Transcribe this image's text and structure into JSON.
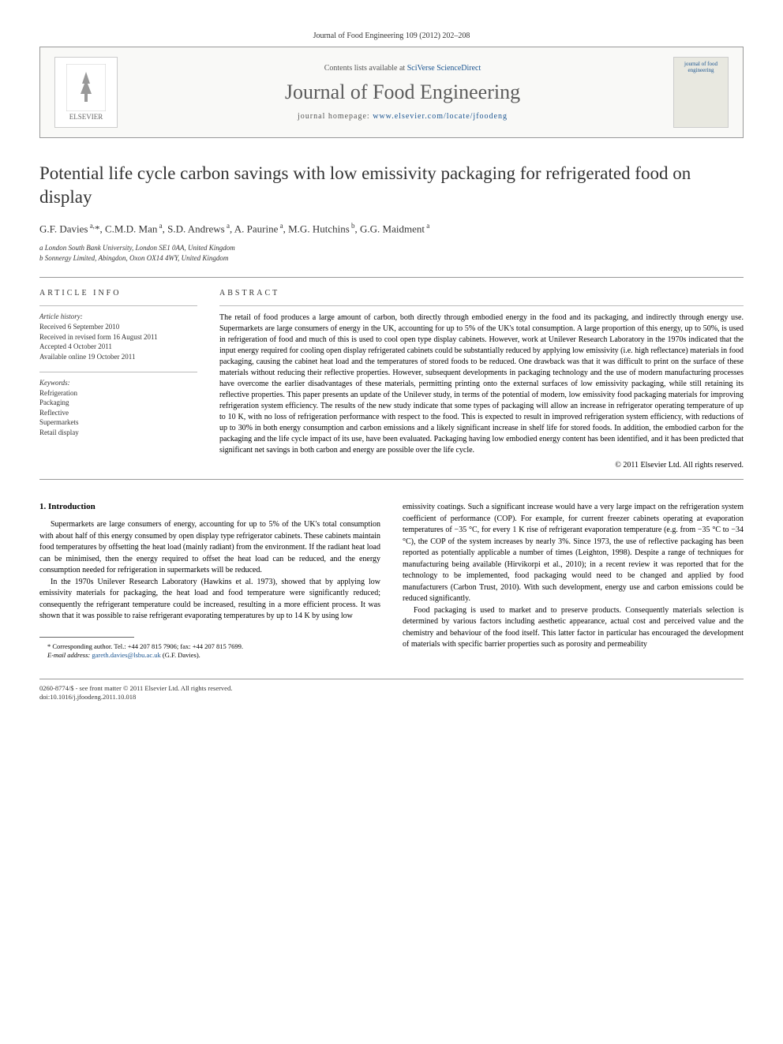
{
  "page_header": "Journal of Food Engineering 109 (2012) 202–208",
  "banner": {
    "contents_line_pre": "Contents lists available at ",
    "contents_line_link": "SciVerse ScienceDirect",
    "journal_name": "Journal of Food Engineering",
    "homepage_pre": "journal homepage: ",
    "homepage_url": "www.elsevier.com/locate/jfoodeng",
    "publisher": "ELSEVIER",
    "cover_text": "journal of food engineering"
  },
  "title": "Potential life cycle carbon savings with low emissivity packaging for refrigerated food on display",
  "authors_html": "G.F. Davies<sup> a,</sup>*, C.M.D. Man<sup> a</sup>, S.D. Andrews<sup> a</sup>, A. Paurine<sup> a</sup>, M.G. Hutchins<sup> b</sup>, G.G. Maidment<sup> a</sup>",
  "affiliations": {
    "a": "a London South Bank University, London SE1 0AA, United Kingdom",
    "b": "b Sonnergy Limited, Abingdon, Oxon OX14 4WY, United Kingdom"
  },
  "article_info": {
    "heading": "ARTICLE INFO",
    "history_label": "Article history:",
    "history": [
      "Received 6 September 2010",
      "Received in revised form 16 August 2011",
      "Accepted 4 October 2011",
      "Available online 19 October 2011"
    ],
    "keywords_label": "Keywords:",
    "keywords": [
      "Refrigeration",
      "Packaging",
      "Reflective",
      "Supermarkets",
      "Retail display"
    ]
  },
  "abstract": {
    "heading": "ABSTRACT",
    "text": "The retail of food produces a large amount of carbon, both directly through embodied energy in the food and its packaging, and indirectly through energy use. Supermarkets are large consumers of energy in the UK, accounting for up to 5% of the UK's total consumption. A large proportion of this energy, up to 50%, is used in refrigeration of food and much of this is used to cool open type display cabinets. However, work at Unilever Research Laboratory in the 1970s indicated that the input energy required for cooling open display refrigerated cabinets could be substantially reduced by applying low emissivity (i.e. high reflectance) materials in food packaging, causing the cabinet heat load and the temperatures of stored foods to be reduced. One drawback was that it was difficult to print on the surface of these materials without reducing their reflective properties. However, subsequent developments in packaging technology and the use of modern manufacturing processes have overcome the earlier disadvantages of these materials, permitting printing onto the external surfaces of low emissivity packaging, while still retaining its reflective properties. This paper presents an update of the Unilever study, in terms of the potential of modern, low emissivity food packaging materials for improving refrigeration system efficiency. The results of the new study indicate that some types of packaging will allow an increase in refrigerator operating temperature of up to 10 K, with no loss of refrigeration performance with respect to the food. This is expected to result in improved refrigeration system efficiency, with reductions of up to 30% in both energy consumption and carbon emissions and a likely significant increase in shelf life for stored foods. In addition, the embodied carbon for the packaging and the life cycle impact of its use, have been evaluated. Packaging having low embodied energy content has been identified, and it has been predicted that significant net savings in both carbon and energy are possible over the life cycle.",
    "copyright": "© 2011 Elsevier Ltd. All rights reserved."
  },
  "body": {
    "section_heading": "1. Introduction",
    "col1": [
      "Supermarkets are large consumers of energy, accounting for up to 5% of the UK's total consumption with about half of this energy consumed by open display type refrigerator cabinets. These cabinets maintain food temperatures by offsetting the heat load (mainly radiant) from the environment. If the radiant heat load can be minimised, then the energy required to offset the heat load can be reduced, and the energy consumption needed for refrigeration in supermarkets will be reduced.",
      "In the 1970s Unilever Research Laboratory (Hawkins et al. 1973), showed that by applying low emissivity materials for packaging, the heat load and food temperature were significantly reduced; consequently the refrigerant temperature could be increased, resulting in a more efficient process. It was shown that it was possible to raise refrigerant evaporating temperatures by up to 14 K by using low"
    ],
    "col2": [
      "emissivity coatings. Such a significant increase would have a very large impact on the refrigeration system coefficient of performance (COP). For example, for current freezer cabinets operating at evaporation temperatures of −35 °C, for every 1 K rise of refrigerant evaporation temperature (e.g. from −35 °C to −34 °C), the COP of the system increases by nearly 3%. Since 1973, the use of reflective packaging has been reported as potentially applicable a number of times (Leighton, 1998). Despite a range of techniques for manufacturing being available (Hirvikorpi et al., 2010); in a recent review it was reported that for the technology to be implemented, food packaging would need to be changed and applied by food manufacturers (Carbon Trust, 2010). With such development, energy use and carbon emissions could be reduced significantly.",
      "Food packaging is used to market and to preserve products. Consequently materials selection is determined by various factors including aesthetic appearance, actual cost and perceived value and the chemistry and behaviour of the food itself. This latter factor in particular has encouraged the development of materials with specific barrier properties such as porosity and permeability"
    ]
  },
  "footnote": {
    "corr": "* Corresponding author. Tel.: +44 207 815 7906; fax: +44 207 815 7699.",
    "email_label": "E-mail address:",
    "email": "gareth.davies@lsbu.ac.uk",
    "email_suffix": " (G.F. Davies)."
  },
  "footer": {
    "line1": "0260-8774/$ - see front matter © 2011 Elsevier Ltd. All rights reserved.",
    "line2": "doi:10.1016/j.jfoodeng.2011.10.018"
  }
}
